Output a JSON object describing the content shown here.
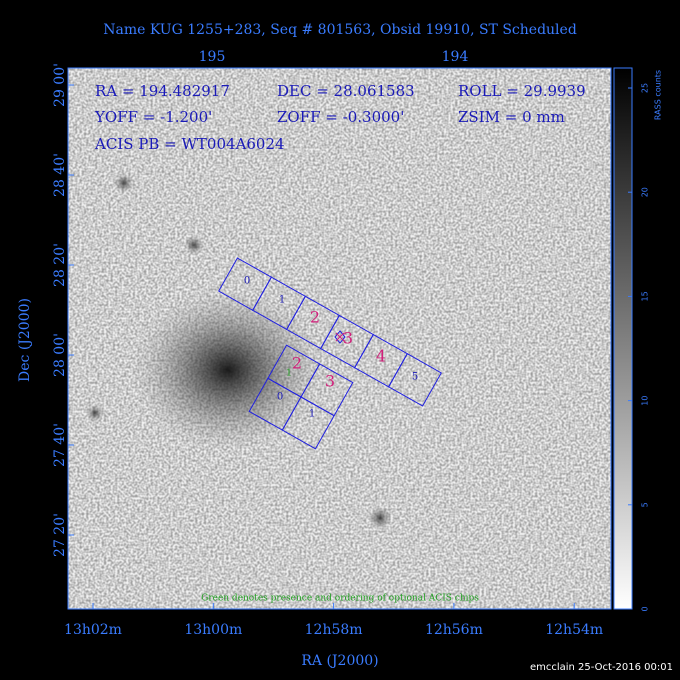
{
  "header": {
    "title": "Name KUG 1255+283, Seq # 801563, Obsid 19910, ST Scheduled"
  },
  "top_axis": {
    "ticks": [
      "195",
      "194"
    ]
  },
  "left_axis": {
    "label": "Dec (J2000)",
    "ticks": [
      "29 00'",
      "28 40'",
      "28 20'",
      "28 00'",
      "27 40'",
      "27 20'"
    ]
  },
  "bottom_axis": {
    "label": "RA (J2000)",
    "ticks": [
      "13h02m",
      "13h00m",
      "12h58m",
      "12h56m",
      "12h54m"
    ]
  },
  "colorbar": {
    "label": "RASS counts",
    "ticks": [
      "0",
      "5",
      "10",
      "15",
      "20",
      "25"
    ]
  },
  "info": {
    "rows": [
      [
        "RA = 194.482917",
        "DEC = 28.061583",
        "ROLL = 29.9939"
      ],
      [
        "YOFF = -1.200'",
        "ZOFF = -0.3000'",
        "ZSIM = 0 mm"
      ],
      [
        "ACIS PB = WT004A6024"
      ]
    ]
  },
  "chips": {
    "acis_s": [
      "0",
      "1",
      "2",
      "3",
      "4",
      "5"
    ],
    "acis_i": [
      "0",
      "1",
      "2",
      "3"
    ],
    "optional": "1"
  },
  "note": "Green denotes presence and ordering of optional ACIS chips",
  "footer": "emcclain 25-Oct-2016 00:01"
}
